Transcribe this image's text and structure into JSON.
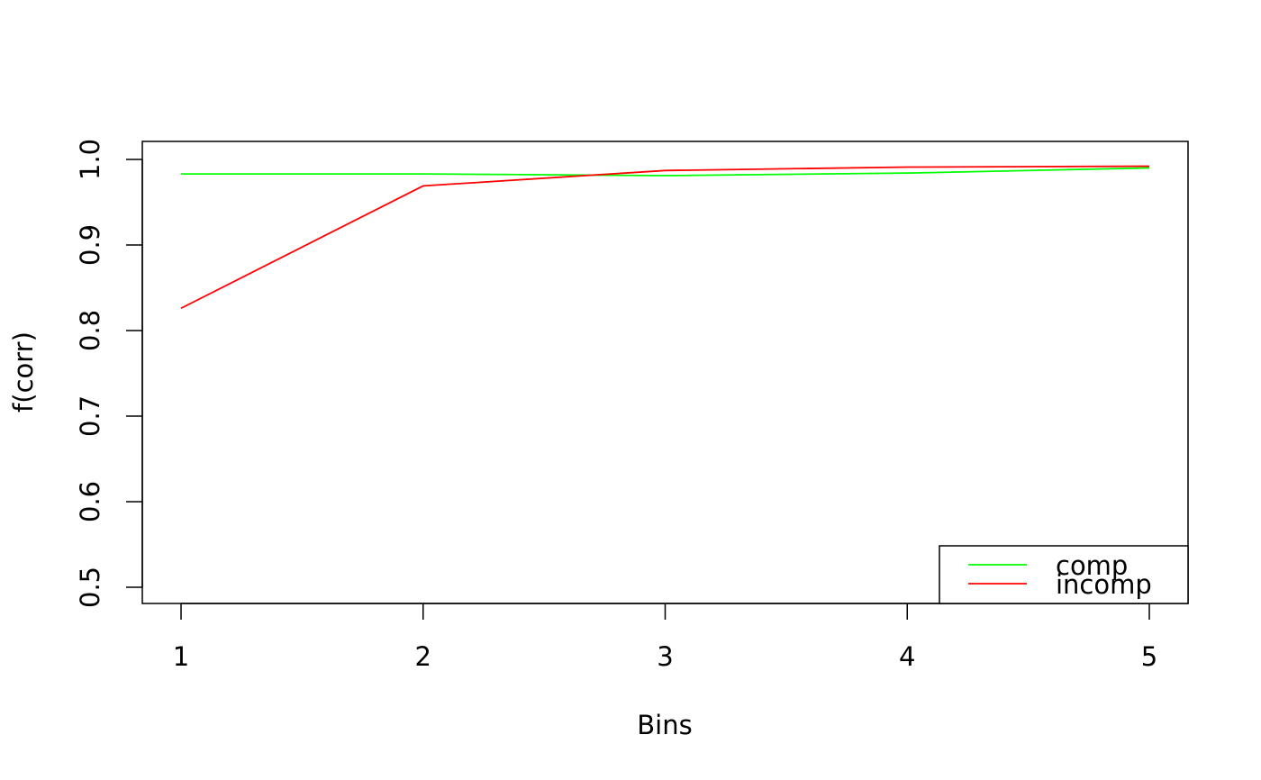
{
  "chart_data": {
    "type": "line",
    "title": "",
    "xlabel": "Bins",
    "ylabel": "f(corr)",
    "x": [
      1,
      2,
      3,
      4,
      5
    ],
    "x_ticks": [
      "1",
      "2",
      "3",
      "4",
      "5"
    ],
    "y_ticks": [
      "0.5",
      "0.6",
      "0.7",
      "0.8",
      "0.9",
      "1.0"
    ],
    "y_tick_values": [
      0.5,
      0.6,
      0.7,
      0.8,
      0.9,
      1.0
    ],
    "xlim": [
      0.84,
      5.16
    ],
    "ylim": [
      0.481,
      1.021
    ],
    "grid": false,
    "legend_position": "bottom-right",
    "series": [
      {
        "name": "comp",
        "color": "#00ff00",
        "values": [
          0.983,
          0.983,
          0.981,
          0.984,
          0.99
        ]
      },
      {
        "name": "incomp",
        "color": "#ff0000",
        "values": [
          0.826,
          0.969,
          0.987,
          0.991,
          0.992
        ]
      }
    ]
  }
}
